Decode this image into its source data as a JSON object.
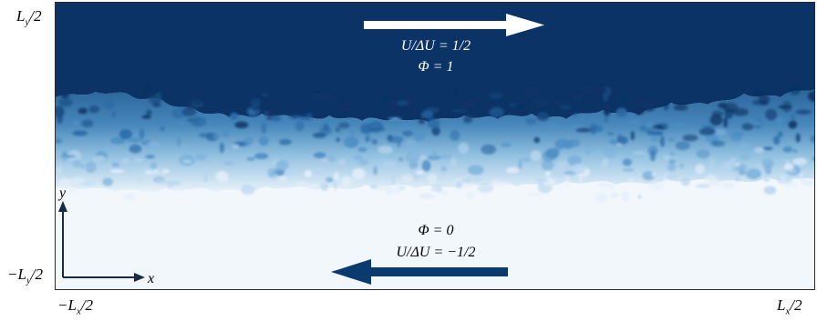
{
  "labels": {
    "y_top_L": "L",
    "y_top_sub": "y",
    "y_top_rest": "/2",
    "y_bot_L": "−L",
    "y_bot_sub": "y",
    "y_bot_rest": "/2",
    "x_left_L": "−L",
    "x_left_sub": "x",
    "x_left_rest": "/2",
    "x_right_L": "L",
    "x_right_sub": "x",
    "x_right_rest": "/2"
  },
  "upper_stream": {
    "velocity": "U/ΔU = 1/2",
    "phi": "Φ = 1"
  },
  "lower_stream": {
    "phi": "Φ = 0",
    "velocity": "U/ΔU = −1/2"
  },
  "axes": {
    "x": "x",
    "y": "y"
  },
  "colors": {
    "dark": "#0b3366",
    "light": "#f2f7fc",
    "arrow_dark": "#0b3a6e",
    "arrow_light": "#ffffff"
  }
}
